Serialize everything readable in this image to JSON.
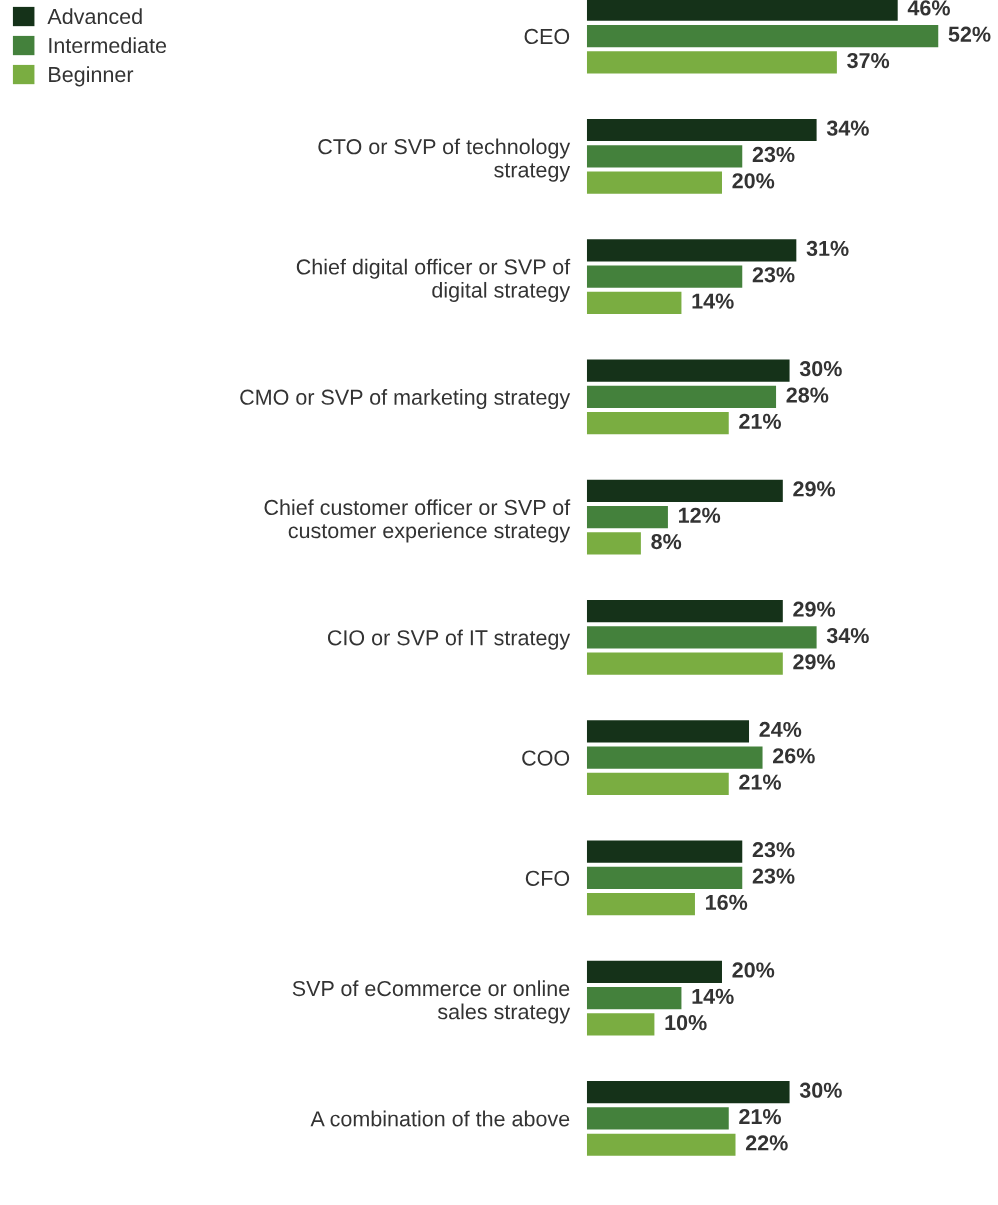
{
  "chart_data": {
    "type": "bar",
    "orientation": "horizontal",
    "legend": "top left",
    "categories": [
      "CEO",
      "CTO or SVP of technology\nstrategy",
      "Chief digital officer or SVP of\ndigital strategy",
      "CMO or SVP of marketing strategy",
      "Chief customer officer or SVP of\ncustomer experience strategy",
      "CIO or SVP of IT strategy",
      "COO",
      "CFO",
      "SVP of eCommerce or online\nsales strategy",
      "A combination of the above"
    ],
    "series": [
      {
        "name": "Advanced",
        "color": "#153219",
        "values": [
          46,
          34,
          31,
          30,
          29,
          29,
          24,
          23,
          20,
          30
        ],
        "value_labels": [
          "46%",
          "34%",
          "31%",
          "30%",
          "29%",
          "29%",
          "24%",
          "23%",
          "20%",
          "30%"
        ]
      },
      {
        "name": "Intermediate",
        "color": "#44813c",
        "values": [
          52,
          23,
          23,
          28,
          12,
          34,
          26,
          23,
          14,
          21
        ],
        "value_labels": [
          "52%",
          "23%",
          "23%",
          "28%",
          "12%",
          "34%",
          "26%",
          "23%",
          "14%",
          "21%"
        ]
      },
      {
        "name": "Beginner",
        "color": "#7aad41",
        "values": [
          37,
          20,
          14,
          21,
          8,
          29,
          21,
          16,
          10,
          22
        ],
        "value_labels": [
          "37%",
          "20%",
          "14%",
          "21%",
          "8%",
          "29%",
          "21%",
          "16%",
          "10%",
          "22%"
        ]
      }
    ]
  }
}
